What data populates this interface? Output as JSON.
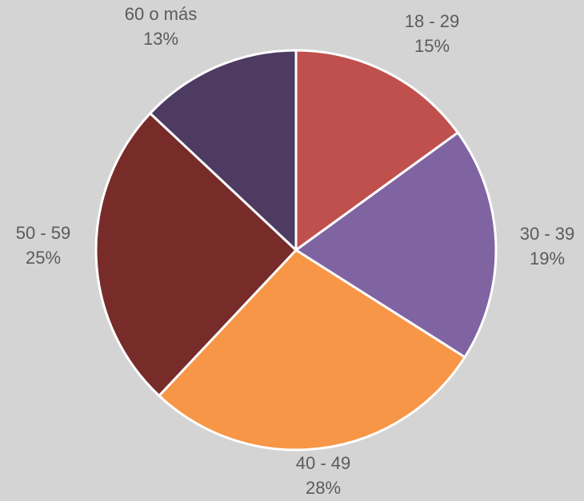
{
  "chart_data": {
    "type": "pie",
    "categories": [
      "18 - 29",
      "30 - 39",
      "40 - 49",
      "50 - 59",
      "60 o más"
    ],
    "values": [
      15,
      19,
      28,
      25,
      13
    ],
    "value_labels": [
      "15%",
      "19%",
      "28%",
      "25%",
      "13%"
    ],
    "colors": [
      "#c0504d",
      "#8064a2",
      "#f79646",
      "#772c2a",
      "#4d3b62"
    ],
    "start_angle": "12 o'clock",
    "direction": "clockwise",
    "legend": "none",
    "slice_border_color": "#ffffff"
  }
}
